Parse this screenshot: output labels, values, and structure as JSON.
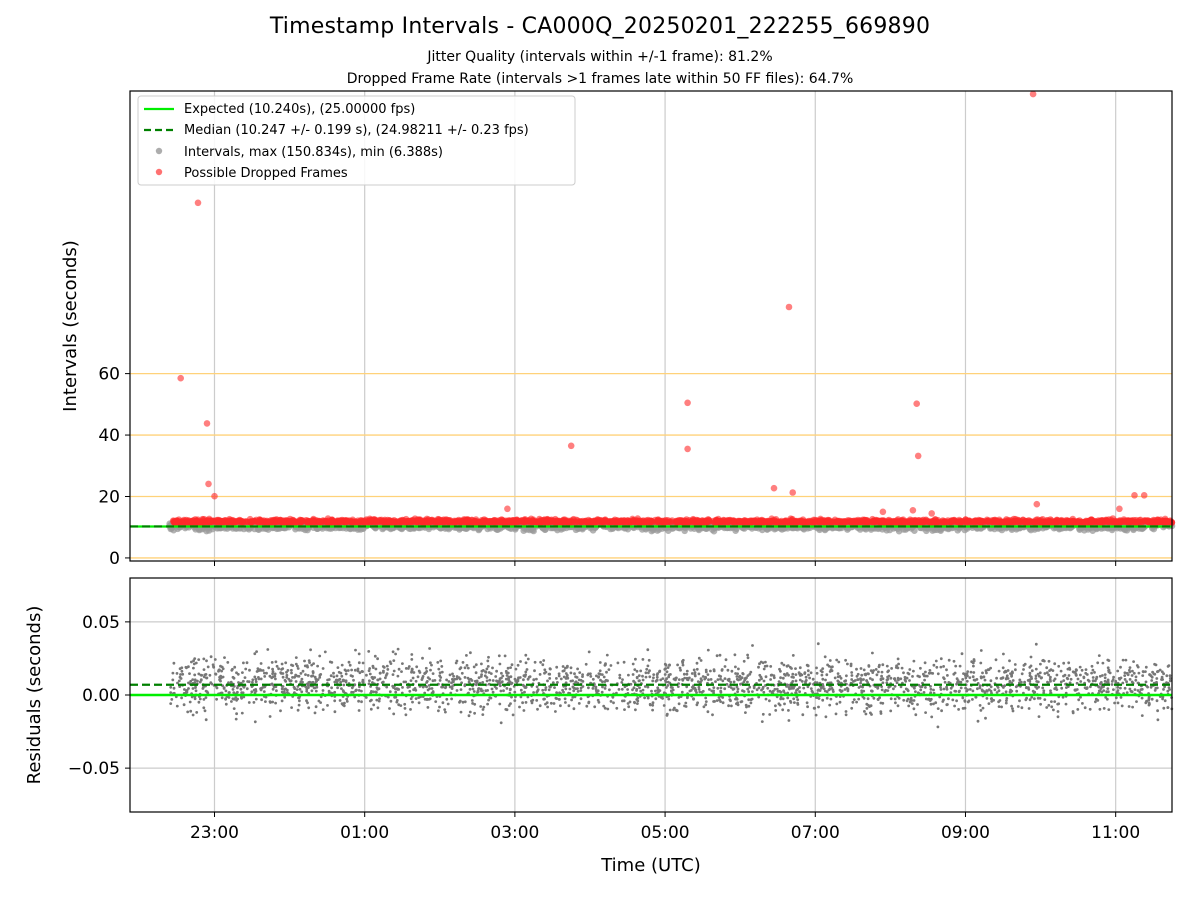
{
  "chart_data": [
    {
      "type": "scatter",
      "title": "Timestamp Intervals - CA000Q_20250201_222255_669890",
      "subtitles": [
        "Jitter Quality (intervals within +/-1 frame): 81.2%",
        "Dropped Frame Rate (intervals >1 frames late within 50 FF files): 64.7%"
      ],
      "xlabel": "",
      "ylabel": "Intervals (seconds)",
      "x_range_hours": [
        -2.125,
        11.75
      ],
      "ylim": [
        -1,
        152
      ],
      "y_ticks": [
        0,
        20,
        40,
        60
      ],
      "x_tick_labels": [
        "23:00",
        "01:00",
        "03:00",
        "05:00",
        "07:00",
        "09:00",
        "11:00"
      ],
      "x_tick_hours": [
        -1,
        1,
        3,
        5,
        7,
        9,
        11
      ],
      "reference_lines": [
        0,
        20,
        40,
        60
      ],
      "reference_line_color": "#ffd27a",
      "grid": "vertical",
      "legend_position": "top-left",
      "legend": [
        {
          "label": "Expected (10.240s), (25.00000 fps)",
          "kind": "line",
          "color": "#00ee00"
        },
        {
          "label": "Median (10.247 +/- 0.199 s), (24.98211 +/- 0.23 fps)",
          "kind": "dashed",
          "color": "#008000"
        },
        {
          "label": "Intervals, max (150.834s), min (6.388s)",
          "kind": "marker",
          "color": "#999999"
        },
        {
          "label": "Possible Dropped Frames",
          "kind": "marker",
          "color": "#ff4d4d"
        }
      ],
      "series": [
        {
          "name": "Expected (10.240s), (25.00000 fps)",
          "constant": 10.24,
          "color": "#00ee00"
        },
        {
          "name": "Median (10.247 +/- 0.199 s), (24.98211 +/- 0.23 fps)",
          "constant": 10.247,
          "color": "#008000"
        },
        {
          "name": "Intervals, max (150.834s), min (6.388s)",
          "color": "#999999",
          "band_center": 10.24,
          "band_spread": 2.5,
          "x_start": -1.6,
          "x_end": 11.75
        },
        {
          "name": "Possible Dropped Frames",
          "color": "#ff2a2a",
          "band_center": 11.5,
          "band_spread": 2.5,
          "outliers": [
            {
              "x": -1.45,
              "y": 58.5
            },
            {
              "x": -1.22,
              "y": 115.6
            },
            {
              "x": -1.1,
              "y": 43.8
            },
            {
              "x": -1.08,
              "y": 24.1
            },
            {
              "x": -1.0,
              "y": 20.1
            },
            {
              "x": 2.9,
              "y": 16.0
            },
            {
              "x": 3.75,
              "y": 36.5
            },
            {
              "x": 5.3,
              "y": 50.5
            },
            {
              "x": 5.3,
              "y": 35.5
            },
            {
              "x": 6.45,
              "y": 22.7
            },
            {
              "x": 6.65,
              "y": 81.7
            },
            {
              "x": 6.7,
              "y": 21.3
            },
            {
              "x": 7.9,
              "y": 15.0
            },
            {
              "x": 8.3,
              "y": 15.5
            },
            {
              "x": 8.35,
              "y": 50.2
            },
            {
              "x": 8.37,
              "y": 33.2
            },
            {
              "x": 8.55,
              "y": 14.5
            },
            {
              "x": 9.9,
              "y": 151.0
            },
            {
              "x": 9.95,
              "y": 17.5
            },
            {
              "x": 11.05,
              "y": 16.0
            },
            {
              "x": 11.25,
              "y": 20.4
            },
            {
              "x": 11.38,
              "y": 20.4
            }
          ]
        }
      ]
    },
    {
      "type": "scatter",
      "xlabel": "Time (UTC)",
      "ylabel": "Residuals (seconds)",
      "ylim": [
        -0.08,
        0.08
      ],
      "y_ticks": [
        0.05,
        0.0,
        -0.05
      ],
      "y_tick_labels": [
        "0.05",
        "0.00",
        "−0.05"
      ],
      "x_tick_labels": [
        "23:00",
        "01:00",
        "03:00",
        "05:00",
        "07:00",
        "09:00",
        "11:00"
      ],
      "x_tick_hours": [
        -1,
        1,
        3,
        5,
        7,
        9,
        11
      ],
      "grid": "both",
      "series": [
        {
          "name": "",
          "constant": 0.0,
          "color": "#00ee00"
        },
        {
          "name": "",
          "constant": 0.007,
          "color": "#008000"
        },
        {
          "name": "",
          "color": "#777777",
          "center": 0.007,
          "spread": 0.018
        }
      ]
    }
  ]
}
